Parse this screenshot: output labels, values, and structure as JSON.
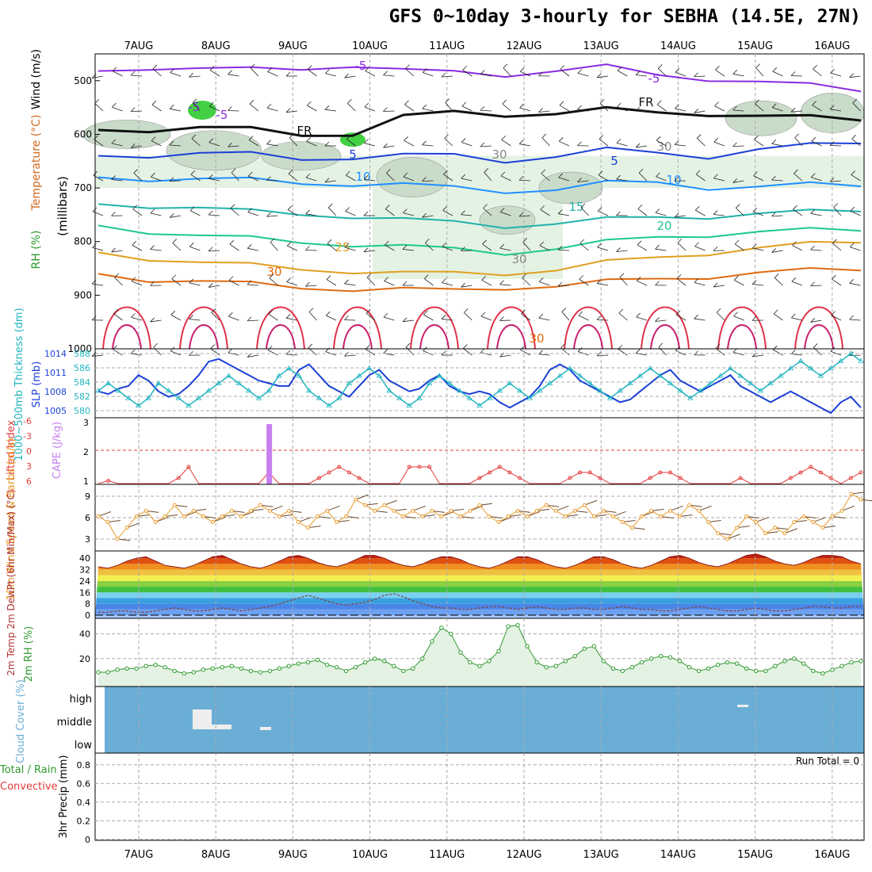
{
  "title": "GFS 0~10day 3-hourly for SEBHA (14.5E, 27N)",
  "colors": {
    "slp": "#1a3fd6",
    "thickness": "#22b5c0",
    "lifted_index": "#e33b3b",
    "cape": "#c77ff0",
    "wind10m": "#e89a2a",
    "rh": "#2f9a2f",
    "cloud": "#6aaed6",
    "temp_dark": "#8b1a1a"
  },
  "chart_data": [
    {
      "panel": "upper-air",
      "type": "contour",
      "x_ticks": [
        "7AUG",
        "8AUG",
        "9AUG",
        "10AUG",
        "11AUG",
        "12AUG",
        "13AUG",
        "14AUG",
        "15AUG",
        "16AUG"
      ],
      "ylabel_wind": "Wind (m/s)",
      "ylabel_temp": "Temperature (°C)",
      "ylabel_rh": "RH (%)",
      "ylabel_axis": "(millibars)",
      "y_ticks": [
        "500",
        "600",
        "700",
        "800",
        "900",
        "1000"
      ],
      "ylim": [
        1000,
        450
      ],
      "isotherms": [
        {
          "value": -5,
          "label": "-5",
          "color": "#8a2be2",
          "p": [
            482,
            474,
            478,
            480,
            477,
            470,
            482,
            485,
            488,
            480,
            475,
            490,
            495,
            502,
            510,
            518
          ]
        },
        {
          "value": 0,
          "label": "FR",
          "color": "#111111",
          "p": [
            592,
            590,
            588,
            592,
            600,
            598,
            568,
            560,
            562,
            560,
            555,
            560,
            560,
            566,
            570,
            572
          ]
        },
        {
          "value": 5,
          "label": "5",
          "color": "#1a3fd6",
          "p": [
            640,
            638,
            636,
            638,
            645,
            642,
            640,
            640,
            648,
            640,
            630,
            635,
            640,
            628,
            622,
            615
          ]
        },
        {
          "value": 10,
          "label": "10",
          "color": "#1e90ff",
          "p": [
            680,
            682,
            684,
            686,
            690,
            692,
            695,
            700,
            705,
            702,
            692,
            690,
            698,
            698,
            695,
            695
          ]
        },
        {
          "value": 15,
          "label": "15",
          "color": "#20b2aa",
          "p": [
            730,
            732,
            738,
            745,
            748,
            752,
            760,
            765,
            770,
            765,
            760,
            755,
            752,
            748,
            746,
            742
          ]
        },
        {
          "value": 20,
          "label": "20",
          "color": "#1ec98a",
          "p": [
            770,
            780,
            790,
            795,
            800,
            805,
            810,
            815,
            820,
            812,
            802,
            792,
            786,
            782,
            780,
            778
          ]
        },
        {
          "value": 25,
          "label": "25",
          "color": "#e0a020",
          "p": [
            820,
            830,
            840,
            845,
            850,
            855,
            860,
            860,
            858,
            852,
            840,
            830,
            820,
            812,
            806,
            800
          ]
        },
        {
          "value": 30,
          "label": "30",
          "color": "#e06a10",
          "p": [
            860,
            870,
            875,
            880,
            885,
            888,
            890,
            892,
            885,
            882,
            876,
            870,
            864,
            858,
            855,
            852
          ]
        }
      ],
      "contour_labels": [
        "-5",
        "-5",
        "-5",
        "-5",
        "FR",
        "FR",
        "5",
        "5",
        "10",
        "10",
        "15",
        "20",
        "25",
        "30",
        "30",
        "30",
        "30",
        "30"
      ]
    },
    {
      "panel": "slp-thickness",
      "type": "line",
      "ylabel_left": "1000~500mb Thickness (dm)",
      "ylabel_right": "SLP (mb)",
      "y_left_ticks": [
        "588",
        "586",
        "584",
        "582",
        "580"
      ],
      "y_right_ticks": [
        "1014",
        "1011",
        "1008",
        "1005"
      ],
      "series": [
        {
          "name": "SLP (mb)",
          "values": [
            1007,
            1006.5,
            1007.5,
            1008,
            1010,
            1009,
            1007,
            1006,
            1006.5,
            1008,
            1010,
            1012.5,
            1013,
            1012,
            1011,
            1010,
            1009,
            1008.5,
            1008,
            1008,
            1011,
            1012,
            1010,
            1008,
            1007,
            1006,
            1008,
            1010,
            1011,
            1009,
            1008,
            1007,
            1007.5,
            1009,
            1010,
            1008,
            1007,
            1006.5,
            1007,
            1006.5,
            1005,
            1004,
            1005,
            1006,
            1008,
            1011,
            1012,
            1011,
            1009,
            1008,
            1007,
            1006,
            1005,
            1005.5,
            1007,
            1008.5,
            1010,
            1011,
            1009,
            1008,
            1007,
            1008,
            1009,
            1010,
            1008,
            1007,
            1006,
            1005,
            1006,
            1007,
            1006,
            1005,
            1004,
            1003,
            1005,
            1006,
            1004
          ]
        },
        {
          "name": "Thickness (dm)",
          "values": [
            583,
            584,
            583,
            582,
            581,
            582,
            584,
            583,
            582,
            581,
            582,
            583,
            584,
            585,
            584,
            583,
            582,
            583,
            585,
            586,
            585,
            583,
            582,
            581,
            582,
            584,
            585,
            586,
            585,
            583,
            582,
            581,
            582,
            584,
            585,
            584,
            583,
            582,
            581,
            582,
            583,
            584,
            583,
            582,
            583,
            584,
            585,
            586,
            585,
            584,
            583,
            582,
            583,
            584,
            585,
            586,
            585,
            584,
            583,
            582,
            583,
            584,
            585,
            586,
            585,
            584,
            583,
            584,
            585,
            586,
            587,
            586,
            585,
            586,
            587,
            588,
            587
          ]
        }
      ]
    },
    {
      "panel": "stability",
      "type": "line+bar",
      "ylabel_left": "Lifted Index",
      "ylabel_right": "CAPE (J/kg)",
      "y_left_ticks": [
        "-6",
        "-3",
        "0",
        "3",
        "6"
      ],
      "y_right_ticks": [
        "3",
        "2",
        "1"
      ],
      "cape_bar": {
        "index": 17,
        "value": 3
      },
      "lifted_index": [
        6,
        5.5,
        6,
        6,
        6,
        6,
        6,
        6,
        5,
        3,
        6,
        6,
        6,
        6,
        6,
        6,
        6,
        4,
        6,
        6,
        6,
        6,
        5,
        4,
        3,
        4,
        5,
        6,
        6,
        6,
        6,
        3,
        3,
        3,
        6,
        6,
        6,
        6,
        5,
        4,
        3,
        4,
        5,
        6,
        6,
        6,
        6,
        5,
        4,
        4,
        5,
        6,
        6,
        6,
        6,
        5,
        4,
        4,
        5,
        6,
        6,
        6,
        6,
        6,
        5,
        6,
        6,
        6,
        6,
        5,
        4,
        3,
        4,
        5,
        6,
        5,
        4
      ]
    },
    {
      "panel": "wind10m",
      "type": "line",
      "ylabel": "10m Wind Speed & Barbs (m/s)",
      "y_ticks": [
        "9",
        "6",
        "3"
      ],
      "values": [
        5,
        4,
        1,
        3,
        5,
        6,
        4,
        5,
        7,
        5,
        6,
        5,
        4,
        5,
        6,
        5,
        6,
        7,
        6,
        5,
        6,
        4,
        3,
        5,
        6,
        4,
        5,
        8,
        7,
        6,
        7,
        6,
        5,
        6,
        5,
        6,
        5,
        6,
        5,
        6,
        7,
        5,
        4,
        5,
        6,
        5,
        6,
        7,
        6,
        5,
        6,
        7,
        5,
        6,
        5,
        4,
        3,
        5,
        6,
        5,
        6,
        5,
        7,
        6,
        4,
        2,
        1,
        3,
        5,
        4,
        2,
        3,
        2,
        4,
        5,
        4,
        3,
        5,
        6,
        9,
        8
      ]
    },
    {
      "panel": "temperature",
      "type": "area",
      "ylabel": "2m Temp 2m DewPt (6hr Min/Max) (°C)",
      "y_ticks": [
        "40",
        "32",
        "24",
        "16",
        "8",
        "0"
      ],
      "temp": [
        34,
        33,
        35,
        38,
        40,
        41,
        38,
        35,
        34,
        33,
        35,
        38,
        41,
        42,
        39,
        36,
        34,
        33,
        35,
        38,
        41,
        42,
        40,
        37,
        35,
        34,
        36,
        39,
        42,
        42,
        40,
        37,
        35,
        34,
        36,
        39,
        41,
        41,
        39,
        36,
        34,
        33,
        35,
        38,
        41,
        41,
        39,
        36,
        34,
        33,
        35,
        38,
        41,
        41,
        39,
        36,
        34,
        33,
        35,
        38,
        41,
        42,
        40,
        37,
        35,
        34,
        36,
        39,
        42,
        43,
        41,
        38,
        36,
        35,
        37,
        40,
        42,
        42,
        41,
        38,
        36
      ],
      "dewpoint": [
        2,
        2,
        3,
        3,
        2,
        2,
        3,
        4,
        5,
        4,
        3,
        3,
        4,
        5,
        4,
        3,
        4,
        5,
        6,
        8,
        10,
        12,
        14,
        12,
        10,
        8,
        7,
        8,
        9,
        11,
        14,
        15,
        13,
        10,
        8,
        6,
        5,
        5,
        4,
        4,
        5,
        6,
        6,
        5,
        4,
        5,
        6,
        5,
        4,
        4,
        5,
        5,
        4,
        4,
        5,
        6,
        5,
        4,
        4,
        3,
        3,
        4,
        5,
        6,
        5,
        4,
        3,
        3,
        4,
        5,
        4,
        3,
        3,
        4,
        5,
        6,
        6,
        5,
        5,
        6,
        6
      ]
    },
    {
      "panel": "rh2m",
      "type": "area",
      "ylabel": "2m RH (%)",
      "y_ticks": [
        "40",
        "20"
      ],
      "values": [
        9,
        9,
        11,
        12,
        12,
        14,
        15,
        13,
        10,
        8,
        9,
        11,
        12,
        13,
        14,
        12,
        10,
        9,
        10,
        12,
        14,
        16,
        17,
        19,
        15,
        13,
        10,
        13,
        17,
        20,
        18,
        14,
        10,
        12,
        20,
        34,
        45,
        40,
        25,
        17,
        14,
        18,
        26,
        46,
        47,
        30,
        17,
        13,
        14,
        18,
        22,
        28,
        30,
        18,
        12,
        10,
        13,
        17,
        20,
        22,
        21,
        18,
        13,
        10,
        12,
        15,
        17,
        16,
        12,
        10,
        10,
        14,
        18,
        20,
        16,
        10,
        8,
        11,
        14,
        17,
        18
      ]
    },
    {
      "panel": "cloud",
      "type": "bar",
      "ylabel": "Cloud Cover (%)",
      "levels": [
        "high",
        "middle",
        "low"
      ]
    },
    {
      "panel": "precip",
      "type": "bar",
      "ylabel_total": "Total / Rain",
      "ylabel_conv": "Convective",
      "ylabel": "3hr Precip (mm)",
      "y_ticks": [
        "0.8",
        "0.6",
        "0.4",
        "0.2",
        "0"
      ],
      "run_total": "Run Total = 0",
      "values": []
    }
  ]
}
